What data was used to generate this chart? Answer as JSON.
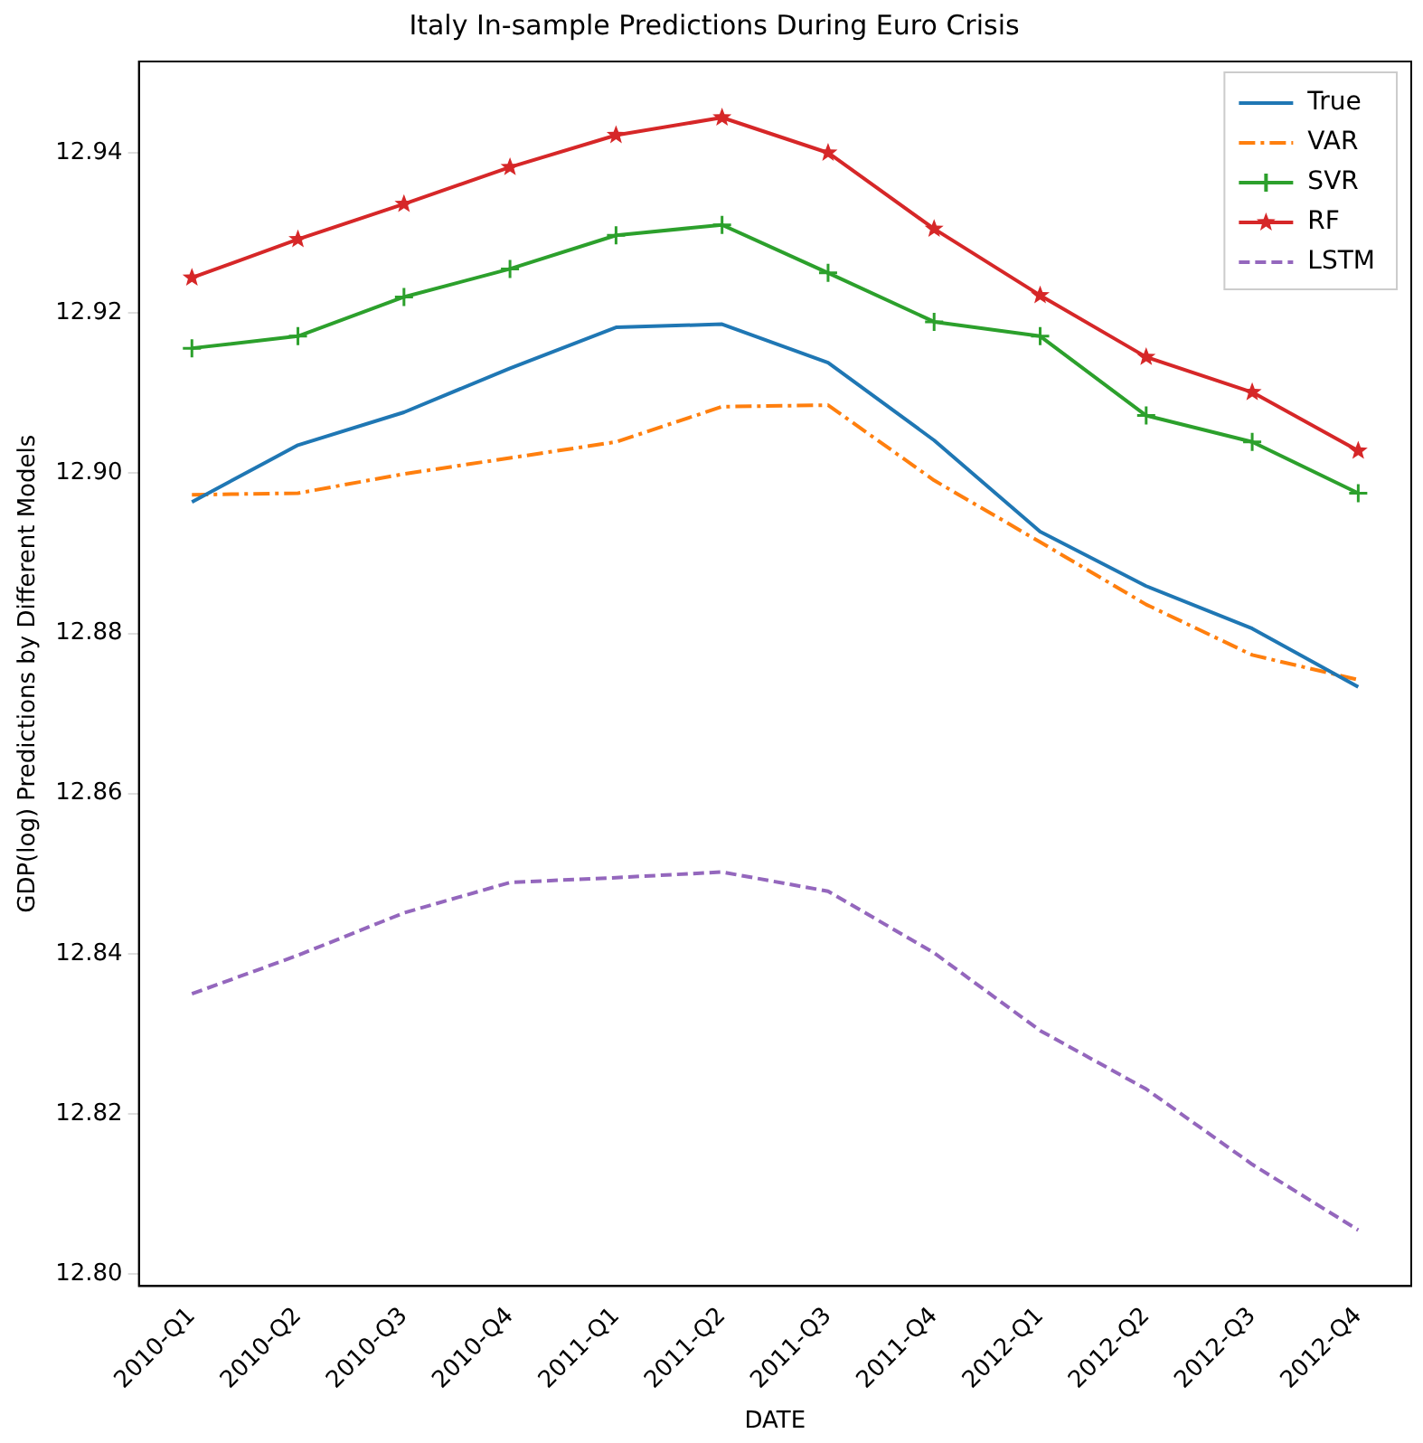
{
  "chart_data": {
    "type": "line",
    "title": "Italy In-sample Predictions During Euro Crisis",
    "xlabel": "DATE",
    "ylabel": "GDP(log) Predictions by Different Models",
    "categories": [
      "2010-Q1",
      "2010-Q2",
      "2010-Q3",
      "2010-Q4",
      "2011-Q1",
      "2011-Q2",
      "2011-Q3",
      "2011-Q4",
      "2012-Q1",
      "2012-Q2",
      "2012-Q3",
      "2012-Q4"
    ],
    "series": [
      {
        "name": "True",
        "color": "#1f77b4",
        "line_style": "solid",
        "marker": "none",
        "values": [
          12.8964,
          12.9035,
          12.9076,
          12.9131,
          12.9182,
          12.9186,
          12.9138,
          12.9041,
          12.8927,
          12.8859,
          12.8806,
          12.8733
        ]
      },
      {
        "name": "VAR",
        "color": "#ff7f0e",
        "line_style": "dashdot",
        "marker": "none",
        "values": [
          12.8973,
          12.8975,
          12.8999,
          12.9019,
          12.9039,
          12.9083,
          12.9085,
          12.8991,
          12.8914,
          12.8836,
          12.8773,
          12.8742
        ]
      },
      {
        "name": "SVR",
        "color": "#2ca02c",
        "line_style": "solid",
        "marker": "cross",
        "values": [
          12.9156,
          12.9171,
          12.922,
          12.9255,
          12.9297,
          12.931,
          12.925,
          12.9189,
          12.9171,
          12.9072,
          12.9039,
          12.8975
        ]
      },
      {
        "name": "RF",
        "color": "#d62728",
        "line_style": "solid",
        "marker": "star",
        "values": [
          12.9244,
          12.9292,
          12.9336,
          12.9382,
          12.9422,
          12.9444,
          12.94,
          12.9305,
          12.9222,
          12.9145,
          12.9101,
          12.9028
        ]
      },
      {
        "name": "LSTM",
        "color": "#9467bd",
        "line_style": "dashed",
        "marker": "none",
        "values": [
          12.835,
          12.8398,
          12.8451,
          12.8489,
          12.8495,
          12.8502,
          12.8478,
          12.8401,
          12.8304,
          12.8231,
          12.8137,
          12.8055
        ]
      }
    ],
    "ylim": [
      12.7985,
      12.9514
    ],
    "yticks": [
      {
        "value": 12.8,
        "label": "12.80"
      },
      {
        "value": 12.82,
        "label": "12.82"
      },
      {
        "value": 12.84,
        "label": "12.84"
      },
      {
        "value": 12.86,
        "label": "12.86"
      },
      {
        "value": 12.88,
        "label": "12.88"
      },
      {
        "value": 12.9,
        "label": "12.90"
      },
      {
        "value": 12.92,
        "label": "12.92"
      },
      {
        "value": 12.94,
        "label": "12.94"
      }
    ],
    "legend": "top right",
    "grid": false
  }
}
